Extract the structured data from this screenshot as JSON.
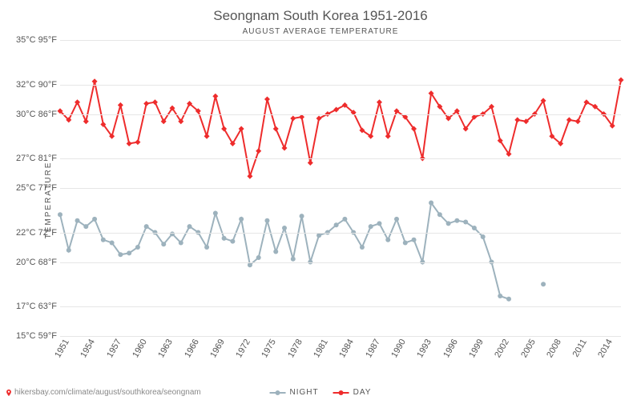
{
  "title": "Seongnam South Korea 1951-2016",
  "subtitle": "AUGUST AVERAGE TEMPERATURE",
  "y_axis_label": "TEMPERATURE",
  "attribution_url": "hikersbay.com/climate/august/southkorea/seongnam",
  "chart": {
    "type": "line",
    "background_color": "#ffffff",
    "grid_color": "#e6e6e6",
    "text_color": "#555555",
    "title_fontsize": 17,
    "subtitle_fontsize": 10,
    "tick_fontsize": 11,
    "ylim_c": [
      15,
      35
    ],
    "y_ticks": [
      {
        "c": 15,
        "f": 59,
        "label_c": "15°C",
        "label_f": "59°F"
      },
      {
        "c": 17,
        "f": 63,
        "label_c": "17°C",
        "label_f": "63°F"
      },
      {
        "c": 20,
        "f": 68,
        "label_c": "20°C",
        "label_f": "68°F"
      },
      {
        "c": 22,
        "f": 72,
        "label_c": "22°C",
        "label_f": "72°F"
      },
      {
        "c": 25,
        "f": 77,
        "label_c": "25°C",
        "label_f": "77°F"
      },
      {
        "c": 27,
        "f": 81,
        "label_c": "27°C",
        "label_f": "81°F"
      },
      {
        "c": 30,
        "f": 86,
        "label_c": "30°C",
        "label_f": "86°F"
      },
      {
        "c": 32,
        "f": 90,
        "label_c": "32°C",
        "label_f": "90°F"
      },
      {
        "c": 35,
        "f": 95,
        "label_c": "35°C",
        "label_f": "95°F"
      }
    ],
    "x_ticks": [
      1951,
      1954,
      1957,
      1960,
      1963,
      1966,
      1969,
      1972,
      1975,
      1978,
      1981,
      1984,
      1987,
      1990,
      1993,
      1996,
      1999,
      2002,
      2005,
      2008,
      2011,
      2014
    ],
    "xlim": [
      1951,
      2016
    ],
    "series": [
      {
        "name": "NIGHT",
        "color": "#9db2bd",
        "line_width": 2,
        "marker_radius": 3,
        "years": [
          1951,
          1952,
          1953,
          1954,
          1955,
          1956,
          1957,
          1958,
          1959,
          1960,
          1961,
          1962,
          1963,
          1964,
          1965,
          1966,
          1967,
          1968,
          1969,
          1970,
          1971,
          1972,
          1973,
          1974,
          1975,
          1976,
          1977,
          1978,
          1979,
          1980,
          1981,
          1982,
          1983,
          1984,
          1985,
          1986,
          1987,
          1988,
          1989,
          1990,
          1991,
          1992,
          1993,
          1994,
          1995,
          1996,
          1997,
          1998,
          1999,
          2000,
          2001,
          2002,
          2003,
          2007
        ],
        "values": [
          23.2,
          20.8,
          22.8,
          22.4,
          22.9,
          21.5,
          21.3,
          20.5,
          20.6,
          21.0,
          22.4,
          22.0,
          21.2,
          21.9,
          21.3,
          22.4,
          22.0,
          21.0,
          23.3,
          21.6,
          21.4,
          22.9,
          19.8,
          20.3,
          22.8,
          20.7,
          22.3,
          20.2,
          23.1,
          20.0,
          21.8,
          22.0,
          22.5,
          22.9,
          22.0,
          21.0,
          22.4,
          22.6,
          21.5,
          22.9,
          21.3,
          21.5,
          20.0,
          24.0,
          23.2,
          22.6,
          22.8,
          22.7,
          22.3,
          21.7,
          20.0,
          17.7,
          17.5,
          18.5
        ]
      },
      {
        "name": "DAY",
        "color": "#ee2c2c",
        "line_width": 2,
        "marker_radius": 3,
        "marker_shape": "diamond",
        "years": [
          1951,
          1952,
          1953,
          1954,
          1955,
          1956,
          1957,
          1958,
          1959,
          1960,
          1961,
          1962,
          1963,
          1964,
          1965,
          1966,
          1967,
          1968,
          1969,
          1970,
          1971,
          1972,
          1973,
          1974,
          1975,
          1976,
          1977,
          1978,
          1979,
          1980,
          1981,
          1982,
          1983,
          1984,
          1985,
          1986,
          1987,
          1988,
          1989,
          1990,
          1991,
          1992,
          1993,
          1994,
          1995,
          1996,
          1997,
          1998,
          1999,
          2000,
          2001,
          2002,
          2003,
          2004,
          2005,
          2006,
          2007,
          2008,
          2009,
          2010,
          2011,
          2012,
          2013,
          2014,
          2015,
          2016
        ],
        "values": [
          30.2,
          29.6,
          30.8,
          29.5,
          32.2,
          29.3,
          28.5,
          30.6,
          28.0,
          28.1,
          30.7,
          30.8,
          29.5,
          30.4,
          29.5,
          30.7,
          30.2,
          28.5,
          31.2,
          29.0,
          28.0,
          29.0,
          25.8,
          27.5,
          31.0,
          29.0,
          27.7,
          29.7,
          29.8,
          26.7,
          29.7,
          30.0,
          30.3,
          30.6,
          30.1,
          28.9,
          28.5,
          30.8,
          28.5,
          30.2,
          29.8,
          29.0,
          27.0,
          31.4,
          30.5,
          29.7,
          30.2,
          29.0,
          29.8,
          30.0,
          30.5,
          28.2,
          27.3,
          29.6,
          29.5,
          30.0,
          30.9,
          28.5,
          28.0,
          29.6,
          29.5,
          30.8,
          30.5,
          30.0,
          29.2,
          32.3
        ]
      }
    ]
  },
  "legend": {
    "items": [
      {
        "label": "NIGHT",
        "color": "#9db2bd"
      },
      {
        "label": "DAY",
        "color": "#ee2c2c"
      }
    ]
  },
  "pin_icon_color": "#ee2c2c"
}
